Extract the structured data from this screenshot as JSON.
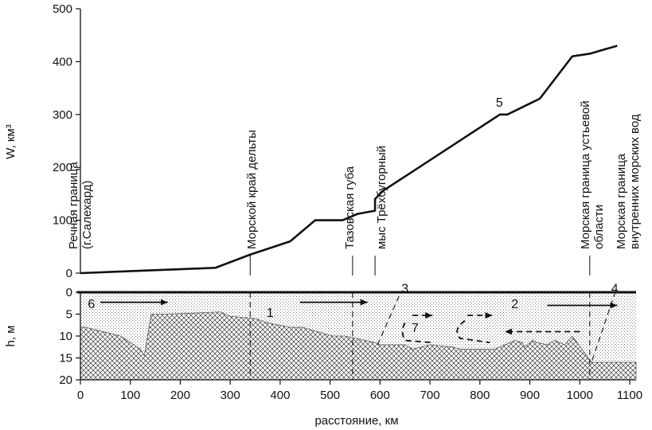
{
  "chart_data": [
    {
      "type": "line",
      "panel": "top",
      "ylabel": "W, км³",
      "ylim": [
        0,
        500
      ],
      "yticks": [
        "0",
        "100",
        "200",
        "300",
        "400",
        "500"
      ],
      "xlim": [
        0,
        1100
      ],
      "series": [
        {
          "name": "5",
          "x": [
            0,
            270,
            340,
            420,
            470,
            525,
            555,
            590,
            590,
            605,
            840,
            855,
            920,
            985,
            1020,
            1075
          ],
          "y": [
            0,
            10,
            35,
            60,
            100,
            100,
            112,
            118,
            140,
            155,
            300,
            300,
            330,
            410,
            415,
            430
          ]
        }
      ],
      "boundaries": [
        {
          "x": 0,
          "label": "Речная граница (г.Салехард)"
        },
        {
          "x": 340,
          "label": "Морской край дельты"
        },
        {
          "x": 545,
          "label": "Тазовская губа"
        },
        {
          "x": 590,
          "label": "мыс Трёхбугорный"
        },
        {
          "x": 1020,
          "label": "Морская граница устьевой области"
        },
        {
          "x": 1090,
          "label": "Морская граница внутренних морских вод"
        }
      ]
    },
    {
      "type": "area",
      "panel": "bottom",
      "ylabel": "h, м",
      "xlabel": "расстояние, км",
      "ylim": [
        20,
        0
      ],
      "yticks": [
        "0",
        "5",
        "10",
        "15",
        "20"
      ],
      "xticks": [
        "0",
        "100",
        "200",
        "300",
        "400",
        "500",
        "600",
        "700",
        "800",
        "900",
        "1000",
        "1100"
      ],
      "xlim": [
        0,
        1100
      ],
      "bed_profile": {
        "x": [
          0,
          10,
          80,
          120,
          128,
          142,
          170,
          280,
          300,
          350,
          375,
          420,
          445,
          505,
          530,
          590,
          600,
          650,
          665,
          700,
          745,
          760,
          800,
          820,
          830,
          870,
          885,
          890,
          905,
          915,
          935,
          950,
          970,
          985,
          1020,
          1025,
          1100
        ],
        "y": [
          8,
          8,
          10,
          13,
          14.5,
          5,
          5,
          4.5,
          5.5,
          6,
          7,
          8,
          8,
          10,
          10,
          11.5,
          12,
          12,
          13,
          12,
          12.5,
          13,
          13,
          13,
          13,
          11,
          11.5,
          12.5,
          11,
          11.5,
          12,
          11,
          12,
          10,
          15.5,
          16,
          16
        ]
      },
      "labels": [
        {
          "text": "1",
          "x": 380,
          "y": 4.5
        },
        {
          "text": "2",
          "x": 870,
          "y": 2.5
        },
        {
          "text": "3",
          "x": 650,
          "y": -1
        },
        {
          "text": "4",
          "x": 1070,
          "y": -1
        },
        {
          "text": "6",
          "x": 22,
          "y": 2.5
        },
        {
          "text": "7",
          "x": 670,
          "y": 8
        }
      ]
    }
  ]
}
